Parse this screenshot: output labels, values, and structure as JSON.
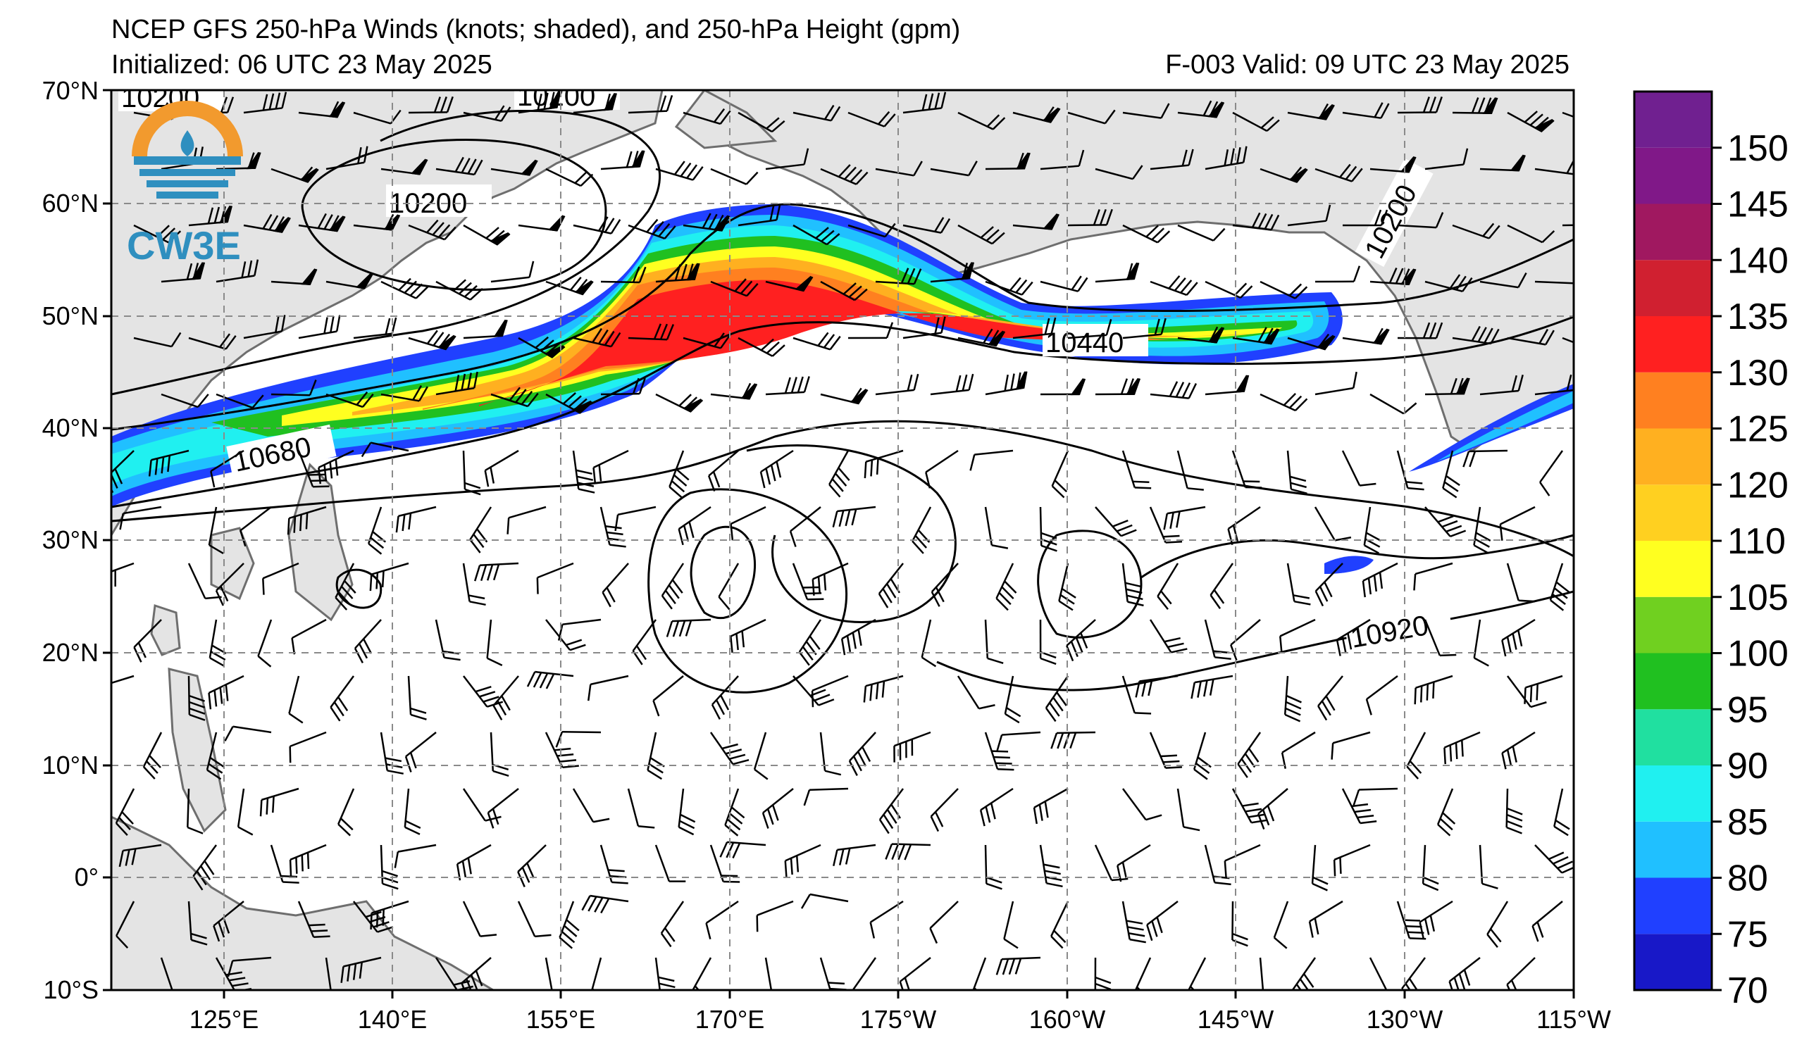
{
  "header": {
    "title": "NCEP GFS 250-hPa Winds (knots; shaded), and 250-hPa Height (gpm)",
    "initialized": "Initialized: 06 UTC 23 May 2025",
    "valid": "F-003  Valid: 09 UTC 23 May 2025"
  },
  "logo": {
    "text": "CW3E",
    "icon": "cw3e-logo-icon",
    "colors": {
      "orange": "#f29a2e",
      "blue": "#2f8fbf"
    }
  },
  "map": {
    "lat_labels": [
      "70°N",
      "60°N",
      "50°N",
      "40°N",
      "30°N",
      "20°N",
      "10°N",
      "0°",
      "10°S"
    ],
    "lon_labels": [
      "125°E",
      "140°E",
      "155°E",
      "170°E",
      "175°W",
      "160°W",
      "145°W",
      "130°W",
      "115°W"
    ],
    "contour_labels": [
      "10200",
      "10200",
      "10200",
      "10200",
      "10440",
      "10680",
      "10920"
    ],
    "land_color": "#e4e4e4",
    "coast_color": "#6e6e6e"
  },
  "colorbar": {
    "levels": [
      70,
      75,
      80,
      85,
      90,
      95,
      100,
      105,
      110,
      120,
      125,
      130,
      135,
      140,
      145,
      150
    ],
    "labels": [
      "70",
      "75",
      "80",
      "85",
      "90",
      "95",
      "100",
      "105",
      "110",
      "120",
      "125",
      "130",
      "135",
      "140",
      "145",
      "150"
    ],
    "colors": [
      "#1818c8",
      "#2040ff",
      "#20c0ff",
      "#20f0f0",
      "#20e0a0",
      "#20c020",
      "#70d020",
      "#ffff20",
      "#ffd020",
      "#ffb020",
      "#ff8020",
      "#ff2020",
      "#d02030",
      "#a01860",
      "#801888",
      "#702090"
    ]
  }
}
